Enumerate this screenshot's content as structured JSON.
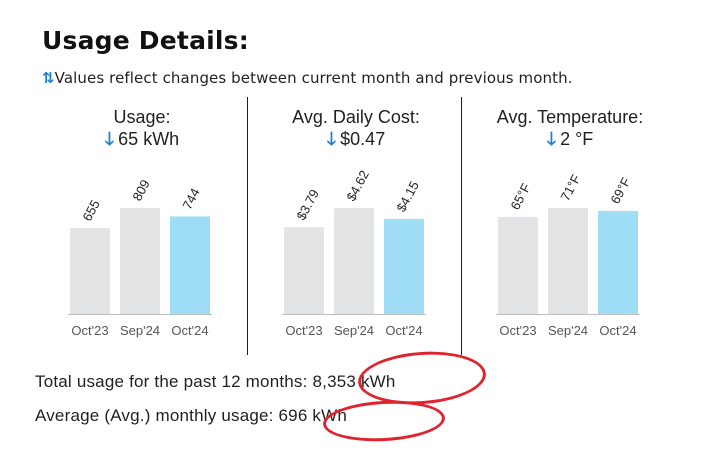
{
  "title": "Usage Details:",
  "note": "Values reflect changes between current month and previous month.",
  "note_icon": "up-down-arrows-icon",
  "colors": {
    "past_bar": "#e3e4e6",
    "current_bar": "#9fdcf5",
    "arrow": "#1f7fd0",
    "highlight": "#e0242f"
  },
  "panels": [
    {
      "heading": "Usage:",
      "change_icon": "down-arrow-icon",
      "change": "65 kWh"
    },
    {
      "heading": "Avg. Daily Cost:",
      "change_icon": "down-arrow-icon",
      "change": "$0.47"
    },
    {
      "heading": "Avg. Temperature:",
      "change_icon": "down-arrow-icon",
      "change": "2 °F"
    }
  ],
  "chart_data": [
    {
      "type": "bar",
      "categories": [
        "Oct'23",
        "Sep'24",
        "Oct'24"
      ],
      "values": [
        655,
        809,
        744
      ],
      "data_labels": [
        "655",
        "809",
        "744"
      ],
      "ylim": [
        0,
        900
      ]
    },
    {
      "type": "bar",
      "categories": [
        "Oct'23",
        "Sep'24",
        "Oct'24"
      ],
      "values": [
        3.79,
        4.62,
        4.15
      ],
      "data_labels": [
        "$3.79",
        "$4.62",
        "$4.15"
      ],
      "ylim": [
        0,
        5.15
      ]
    },
    {
      "type": "bar",
      "categories": [
        "Oct'23",
        "Sep'24",
        "Oct'24"
      ],
      "values": [
        65,
        71,
        69
      ],
      "data_labels": [
        "65°F",
        "71°F",
        "69°F"
      ],
      "ylim": [
        0,
        79
      ]
    }
  ],
  "summary": {
    "total_label": "Total usage for the past 12 months:",
    "total_value": "8,353 kWh",
    "avg_label": "Average (Avg.) monthly usage:",
    "avg_value": "696 kWh"
  }
}
